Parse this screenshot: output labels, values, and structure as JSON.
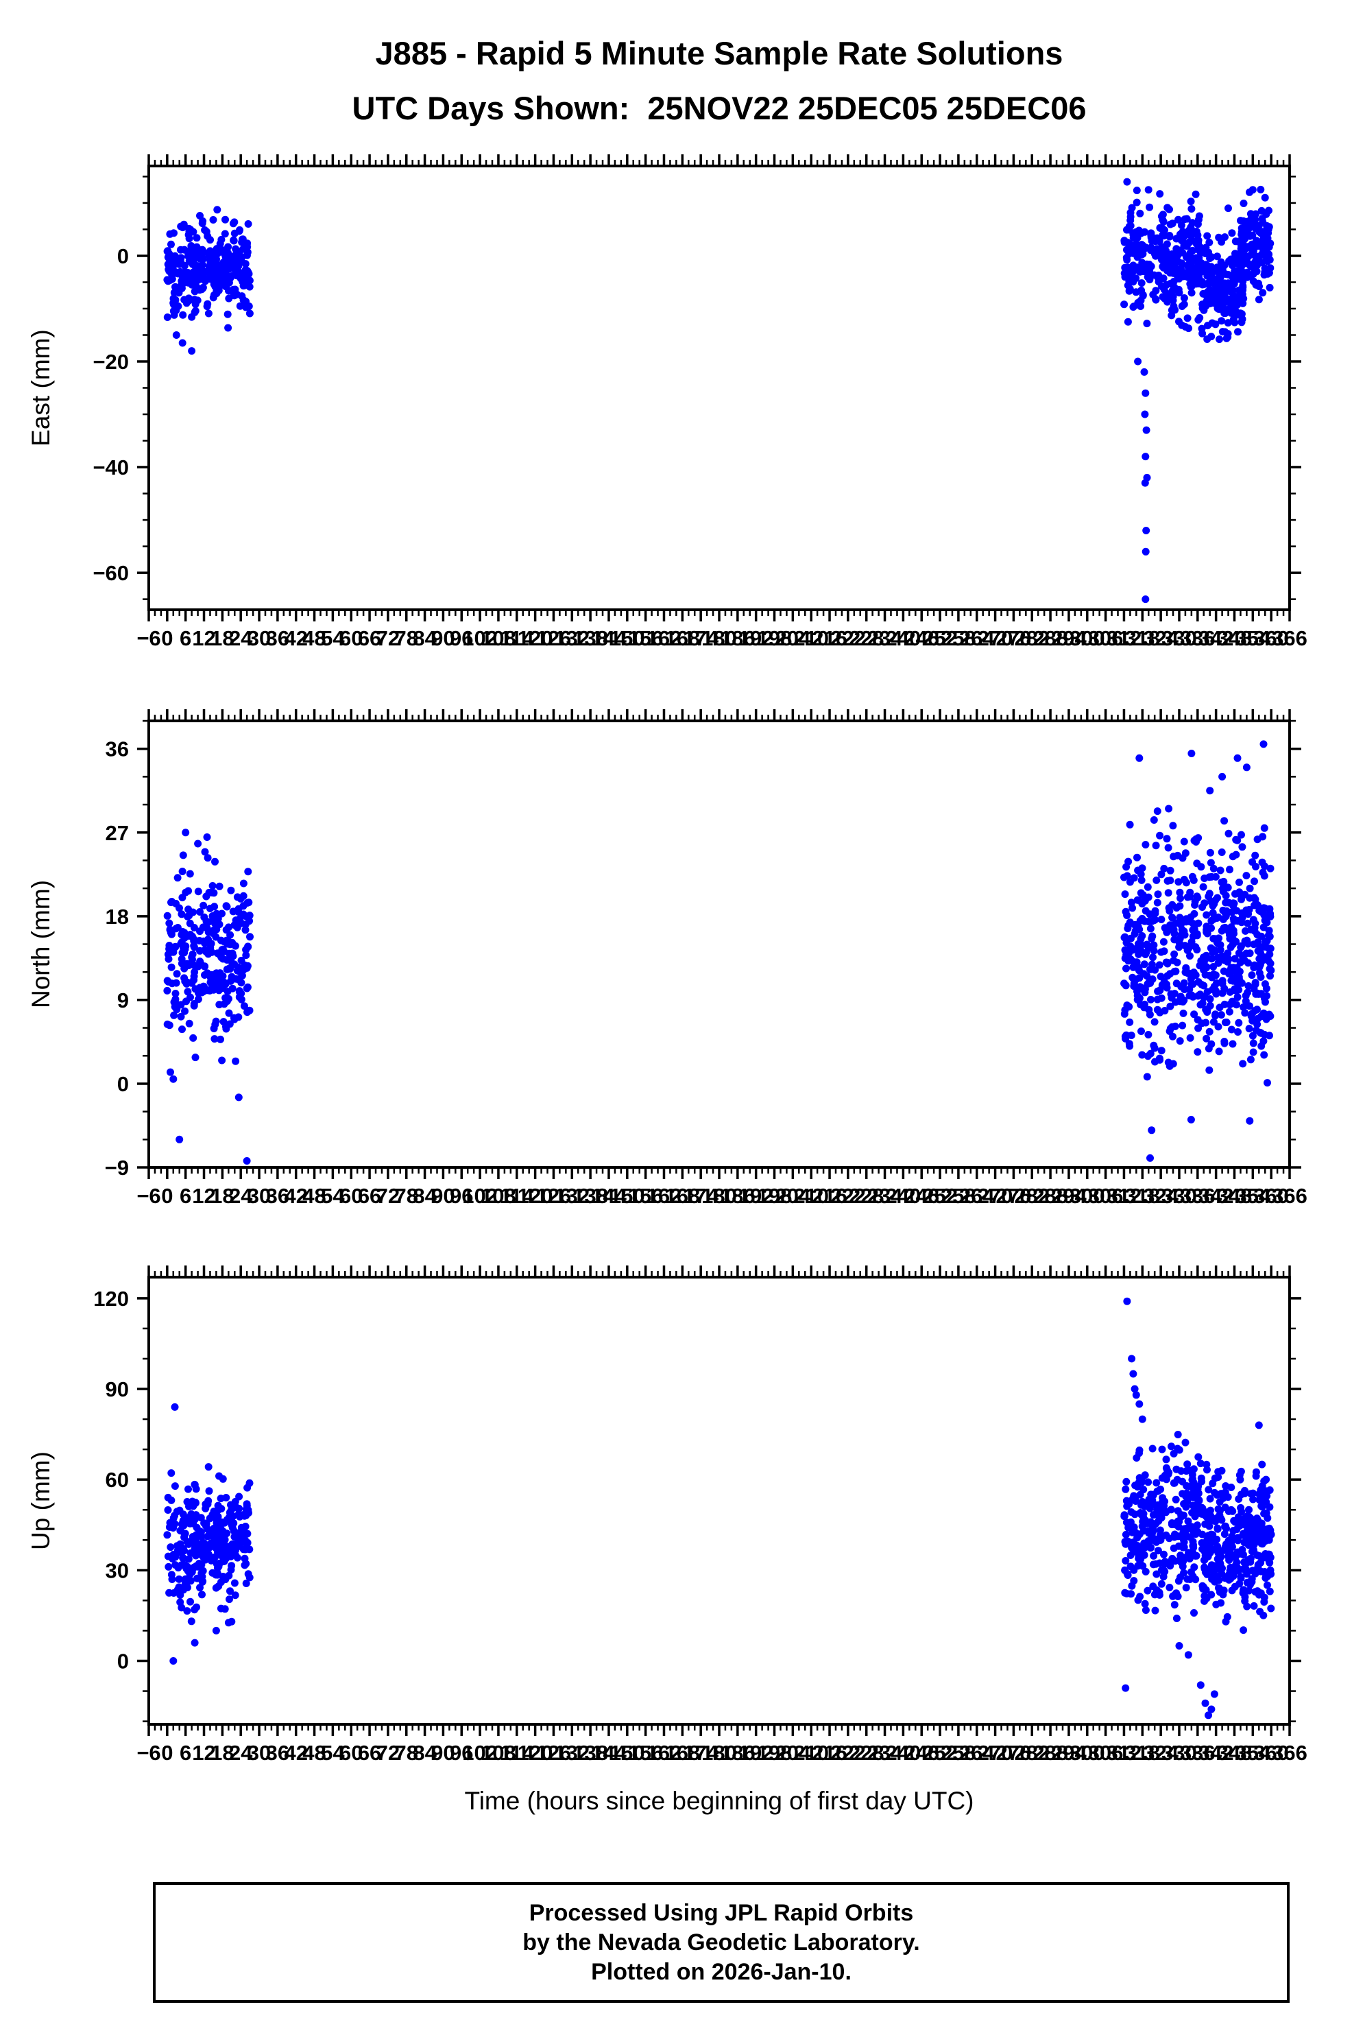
{
  "title": "J885 - Rapid 5 Minute Sample Rate Solutions",
  "subtitle": "UTC Days Shown:  25NOV22 25DEC05 25DEC06",
  "footer": {
    "line1": "Processed Using JPL Rapid Orbits",
    "line2": "by the Nevada Geodetic Laboratory.",
    "line3": "Plotted on 2026-Jan-10."
  },
  "chart_data": {
    "type": "scatter",
    "marker_color": "#0000ff",
    "frame_color": "#000000",
    "xlabel": "Time (hours since beginning of first day UTC)",
    "xlim": [
      -6,
      366
    ],
    "x_major_tick_step": 6,
    "x_minor_tick_step": 2,
    "seed": 885,
    "legend": "none",
    "grid": false,
    "panels": [
      {
        "name": "east",
        "ylabel": "East (mm)",
        "ylim": [
          -67,
          17
        ],
        "yticks": [
          0,
          -20,
          -40,
          -60
        ],
        "y_minor_step": 5,
        "clusters": [
          {
            "x0": 0,
            "x1": 27,
            "n": 300,
            "mean": -3,
            "sd": 4.3,
            "ymin": -14,
            "ymax": 9.5
          },
          {
            "x0": 312,
            "x1": 337,
            "n": 320,
            "mean": -1,
            "sd": 5,
            "ymin": -16,
            "ymax": 13
          },
          {
            "x0": 337,
            "x1": 351,
            "n": 180,
            "mean": -6,
            "sd": 4.5,
            "ymin": -17,
            "ymax": 5
          },
          {
            "x0": 350,
            "x1": 360,
            "n": 140,
            "mean": 1,
            "sd": 4.5,
            "ymin": -9,
            "ymax": 13
          }
        ],
        "outliers": [
          [
            5,
            -16.5
          ],
          [
            8,
            -18
          ],
          [
            3,
            -15
          ],
          [
            318.6,
            -22
          ],
          [
            319,
            -26
          ],
          [
            318.8,
            -30
          ],
          [
            319.3,
            -33
          ],
          [
            319,
            -38
          ],
          [
            319.5,
            -42
          ],
          [
            318.9,
            -43
          ],
          [
            319.2,
            -52
          ],
          [
            319.1,
            -56
          ],
          [
            319,
            -65
          ],
          [
            316.5,
            -20
          ],
          [
            346,
            9
          ],
          [
            354,
            12.5
          ],
          [
            358,
            11
          ],
          [
            313,
            14
          ],
          [
            320,
            12.5
          ]
        ]
      },
      {
        "name": "north",
        "ylabel": "North (mm)",
        "ylim": [
          -9,
          39
        ],
        "yticks": [
          36,
          27,
          18,
          9,
          0,
          -9
        ],
        "y_minor_step": 3,
        "clusters": [
          {
            "x0": 0,
            "x1": 27,
            "n": 300,
            "mean": 13.5,
            "sd": 4.5,
            "ymin": -2,
            "ymax": 25
          },
          {
            "x0": 312,
            "x1": 338,
            "n": 330,
            "mean": 15,
            "sd": 6,
            "ymin": -4,
            "ymax": 31
          },
          {
            "x0": 338,
            "x1": 360,
            "n": 330,
            "mean": 14.5,
            "sd": 5.5,
            "ymin": 0,
            "ymax": 29
          }
        ],
        "outliers": [
          [
            6,
            27
          ],
          [
            13,
            26.5
          ],
          [
            10,
            25.8
          ],
          [
            4,
            -6
          ],
          [
            26,
            -8.3
          ],
          [
            2,
            0.5
          ],
          [
            317,
            35
          ],
          [
            320.5,
            -8
          ],
          [
            321,
            -5
          ],
          [
            334,
            35.5
          ],
          [
            344,
            33
          ],
          [
            349,
            35
          ],
          [
            352,
            34
          ],
          [
            357.5,
            36.5
          ],
          [
            353,
            -4
          ],
          [
            340,
            31.5
          ]
        ]
      },
      {
        "name": "up",
        "ylabel": "Up (mm)",
        "ylim": [
          -21,
          127
        ],
        "yticks": [
          120,
          90,
          60,
          30,
          0
        ],
        "y_minor_step": 10,
        "clusters": [
          {
            "x0": 0,
            "x1": 27,
            "n": 300,
            "mean": 38,
            "sd": 10,
            "ymin": 12,
            "ymax": 66
          },
          {
            "x0": 312,
            "x1": 338,
            "n": 330,
            "mean": 44,
            "sd": 12,
            "ymin": 14,
            "ymax": 76
          },
          {
            "x0": 338,
            "x1": 360,
            "n": 330,
            "mean": 38,
            "sd": 11,
            "ymin": 8,
            "ymax": 66
          }
        ],
        "outliers": [
          [
            2.5,
            84
          ],
          [
            2,
            0
          ],
          [
            9,
            6
          ],
          [
            16,
            10
          ],
          [
            21,
            13
          ],
          [
            313,
            119
          ],
          [
            314.5,
            100
          ],
          [
            315,
            95
          ],
          [
            315.5,
            90
          ],
          [
            316,
            88
          ],
          [
            317,
            85
          ],
          [
            318,
            80
          ],
          [
            312.5,
            -9
          ],
          [
            337,
            -8
          ],
          [
            338.5,
            -14
          ],
          [
            339.5,
            -18
          ],
          [
            340.5,
            -16
          ],
          [
            341.5,
            -11
          ],
          [
            356,
            78
          ],
          [
            357,
            65
          ],
          [
            330,
            5
          ],
          [
            333,
            2
          ]
        ]
      }
    ]
  }
}
